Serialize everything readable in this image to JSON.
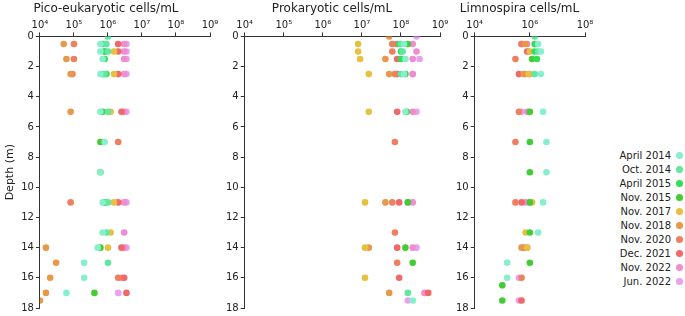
{
  "chart_data": [
    {
      "type": "scatter",
      "title": "Pico-eukaryotic cells/mL",
      "y_label": "Depth (m)",
      "log": "x",
      "grid": false,
      "xlim": [
        10000,
        1000000000
      ],
      "xticks": [
        {
          "value": 10000,
          "label": "10⁴"
        },
        {
          "value": 100000,
          "label": "10⁵"
        },
        {
          "value": 1000000,
          "label": "10⁶"
        },
        {
          "value": 10000000,
          "label": "10⁷"
        },
        {
          "value": 100000000,
          "label": "10⁸"
        },
        {
          "value": 1000000000,
          "label": "10⁹"
        }
      ],
      "ylim": [
        0,
        18
      ],
      "yticks": [
        0,
        2,
        4,
        6,
        8,
        10,
        12,
        14,
        16,
        18
      ],
      "series": [
        {
          "name": "April 2014",
          "color": "#86f0cc",
          "x": [
            600000,
            600000,
            700000,
            600000,
            600000,
            800000,
            600000,
            700000,
            700000,
            500000,
            200000,
            200000,
            60000
          ],
          "values": [
            0.5,
            1,
            1.5,
            2.5,
            5,
            7,
            9,
            11,
            13,
            14,
            15,
            16,
            17
          ]
        },
        {
          "name": "Oct. 2014",
          "color": "#5ee8a0",
          "x": [
            1000000,
            900000,
            1000000,
            800000,
            1000000,
            1000000,
            900000,
            1000000
          ],
          "values": [
            0,
            0.5,
            1,
            2.5,
            5,
            11,
            13,
            15
          ]
        },
        {
          "name": "April 2015",
          "color": "#33dd55",
          "x": [
            700000,
            800000,
            800000,
            900000,
            800000
          ],
          "values": [
            0.5,
            1,
            1.5,
            2.5,
            11
          ]
        },
        {
          "name": "Nov. 2015",
          "color": "#44cc33",
          "x": [
            800000,
            700000,
            700000,
            600000,
            600000,
            800000,
            600000,
            400000
          ],
          "values": [
            1,
            2.5,
            5,
            7,
            9,
            11,
            14,
            17
          ]
        },
        {
          "name": "Nov. 2017",
          "color": "#e8c040",
          "x": [
            1500000,
            1500000,
            1200000,
            1500000,
            1200000,
            1000000
          ],
          "values": [
            1,
            2.5,
            5,
            11,
            13,
            14
          ]
        },
        {
          "name": "Nov. 2018",
          "color": "#e89848",
          "x": [
            50000,
            60000,
            80000,
            80000,
            15000,
            30000,
            20000,
            15000,
            10000
          ],
          "values": [
            0.5,
            1.5,
            2.5,
            5,
            14,
            15,
            16,
            17,
            17.5
          ]
        },
        {
          "name": "Nov. 2020",
          "color": "#ef7f60",
          "x": [
            100000,
            100000,
            90000,
            80000,
            2000000,
            2000000
          ],
          "values": [
            0.5,
            1.5,
            2.5,
            11,
            7,
            16
          ]
        },
        {
          "name": "Dec. 2021",
          "color": "#f06868",
          "x": [
            2000000,
            2000000,
            2000000,
            2500000,
            2000000,
            2500000,
            3000000,
            3500000
          ],
          "values": [
            0.5,
            1,
            2.5,
            5,
            11,
            14,
            16,
            17
          ]
        },
        {
          "name": "Nov. 2022",
          "color": "#f08cd0",
          "x": [
            3000000,
            3000000,
            3000000,
            3000000,
            3000000,
            3000000,
            3000000,
            3000000,
            2500000
          ],
          "values": [
            0.5,
            1,
            1.5,
            2.5,
            5,
            11,
            13,
            14,
            16
          ]
        },
        {
          "name": "Jun. 2022",
          "color": "#e8a0f0",
          "x": [
            3500000,
            3500000,
            3500000,
            3500000,
            3500000,
            3500000,
            3500000,
            2000000
          ],
          "values": [
            0.5,
            1,
            1.5,
            2.5,
            5,
            11,
            14,
            17
          ]
        }
      ]
    },
    {
      "type": "scatter",
      "title": "Prokaryotic cells/mL",
      "log": "x",
      "grid": false,
      "xlim": [
        10000,
        1000000000
      ],
      "xticks": [
        {
          "value": 10000,
          "label": "10⁴"
        },
        {
          "value": 100000,
          "label": "10⁵"
        },
        {
          "value": 1000000,
          "label": "10⁶"
        },
        {
          "value": 10000000,
          "label": "10⁷"
        },
        {
          "value": 100000000,
          "label": "10⁸"
        },
        {
          "value": 1000000000,
          "label": "10⁹"
        }
      ],
      "ylim": [
        0,
        18
      ],
      "yticks": [
        0,
        2,
        4,
        6,
        8,
        10,
        12,
        14,
        16,
        18
      ],
      "series": [
        {
          "name": "April 2014",
          "color": "#86f0cc",
          "x": [
            120000000,
            130000000,
            120000000,
            130000000,
            200000000
          ],
          "values": [
            0.5,
            1.5,
            2.5,
            5,
            17.5
          ]
        },
        {
          "name": "Oct. 2014",
          "color": "#5ee8a0",
          "x": [
            100000000,
            110000000,
            100000000,
            150000000
          ],
          "values": [
            0.5,
            1,
            2.5,
            17
          ]
        },
        {
          "name": "April 2015",
          "color": "#33dd55",
          "x": [
            90000000,
            100000000,
            100000000
          ],
          "values": [
            0.5,
            1,
            1.5
          ]
        },
        {
          "name": "Nov. 2015",
          "color": "#44cc33",
          "x": [
            150000000,
            130000000,
            140000000,
            150000000,
            130000000,
            200000000
          ],
          "values": [
            0.5,
            2.5,
            5,
            11,
            14,
            15
          ]
        },
        {
          "name": "Nov. 2017",
          "color": "#e8c040",
          "x": [
            8000000,
            8000000,
            9000000,
            15000000,
            15000000,
            12000000,
            12000000,
            12000000
          ],
          "values": [
            0.5,
            1,
            1.5,
            2.5,
            5,
            11,
            14,
            16
          ]
        },
        {
          "name": "Nov. 2018",
          "color": "#e89848",
          "x": [
            50000000,
            40000000,
            50000000,
            40000000,
            15000000,
            50000000
          ],
          "values": [
            0,
            1.5,
            2.5,
            11,
            14,
            17
          ]
        },
        {
          "name": "Nov. 2020",
          "color": "#ef7f60",
          "x": [
            60000000,
            60000000,
            70000000,
            70000000,
            60000000,
            70000000,
            80000000
          ],
          "values": [
            0.5,
            1,
            2.5,
            7,
            11,
            13,
            15
          ]
        },
        {
          "name": "Dec. 2021",
          "color": "#f06868",
          "x": [
            80000000,
            80000000,
            80000000,
            80000000,
            90000000,
            80000000,
            90000000,
            500000000
          ],
          "values": [
            0.5,
            1.5,
            2.5,
            5,
            11,
            14,
            16,
            17
          ]
        },
        {
          "name": "Nov. 2022",
          "color": "#f08cd0",
          "x": [
            200000000,
            250000000,
            200000000,
            200000000,
            200000000,
            200000000,
            200000000,
            400000000
          ],
          "values": [
            0.5,
            1,
            1.5,
            2.5,
            5,
            11,
            14,
            17
          ]
        },
        {
          "name": "Jun. 2022",
          "color": "#e8a0f0",
          "x": [
            250000000,
            300000000,
            200000000,
            250000000,
            150000000,
            150000000,
            250000000
          ],
          "values": [
            0,
            1.5,
            2.5,
            5,
            11,
            17.5,
            14
          ]
        }
      ]
    },
    {
      "type": "scatter",
      "title": "Limnospira cells/mL",
      "log": "x",
      "grid": false,
      "legend": "right",
      "xlim": [
        10000,
        100000000
      ],
      "xticks": [
        {
          "value": 10000,
          "label": "10⁴"
        },
        {
          "value": 1000000,
          "label": "10⁶"
        },
        {
          "value": 100000000,
          "label": "10⁸"
        }
      ],
      "ylim": [
        0,
        18
      ],
      "yticks": [
        0,
        2,
        4,
        6,
        8,
        10,
        12,
        14,
        16,
        18
      ],
      "series": [
        {
          "name": "April 2014",
          "color": "#86f0cc",
          "x": [
            2000000,
            2500000,
            2500000,
            3000000,
            4000000,
            4000000,
            3000000,
            2000000,
            150000,
            150000
          ],
          "values": [
            0.5,
            1,
            2.5,
            5,
            7,
            9,
            11,
            13,
            15,
            16
          ]
        },
        {
          "name": "Oct. 2014",
          "color": "#5ee8a0",
          "x": [
            1500000,
            2000000,
            1500000
          ],
          "values": [
            0,
            1,
            2.5
          ]
        },
        {
          "name": "April 2015",
          "color": "#33dd55",
          "x": [
            1500000,
            1500000,
            1800000
          ],
          "values": [
            0.5,
            1,
            1.5
          ]
        },
        {
          "name": "Nov. 2015",
          "color": "#44cc33",
          "x": [
            1200000,
            1000000,
            1000000,
            1000000,
            1000000,
            1000000,
            1000000,
            100000,
            100000
          ],
          "values": [
            1.5,
            5,
            7,
            9,
            11,
            13,
            15,
            16.5,
            17.5
          ]
        },
        {
          "name": "Nov. 2017",
          "color": "#e8c040",
          "x": [
            1000000,
            900000,
            1200000,
            800000,
            700000
          ],
          "values": [
            1,
            2.5,
            11,
            14,
            13
          ]
        },
        {
          "name": "Nov. 2018",
          "color": "#e89848",
          "x": [
            700000,
            600000,
            500000
          ],
          "values": [
            0.5,
            2.5,
            14
          ]
        },
        {
          "name": "Nov. 2020",
          "color": "#ef7f60",
          "x": [
            500000,
            300000,
            400000,
            300000,
            300000,
            500000
          ],
          "values": [
            0.5,
            1.5,
            5,
            7,
            11,
            16
          ]
        },
        {
          "name": "Dec. 2021",
          "color": "#f06868",
          "x": [
            500000,
            800000,
            400000,
            500000,
            600000,
            500000
          ],
          "values": [
            0.5,
            1,
            2.5,
            11,
            14,
            17.5
          ]
        },
        {
          "name": "Nov. 2022",
          "color": "#f08cd0",
          "x": [
            800000,
            900000,
            1000000,
            800000,
            700000,
            800000
          ],
          "values": [
            0.5,
            1,
            2.5,
            5,
            11,
            14
          ]
        },
        {
          "name": "Jun. 2022",
          "color": "#e8a0f0",
          "x": [
            600000,
            700000,
            500000,
            400000,
            400000,
            1000000
          ],
          "values": [
            0.5,
            2.5,
            5,
            16,
            17.5,
            11
          ]
        }
      ]
    }
  ]
}
